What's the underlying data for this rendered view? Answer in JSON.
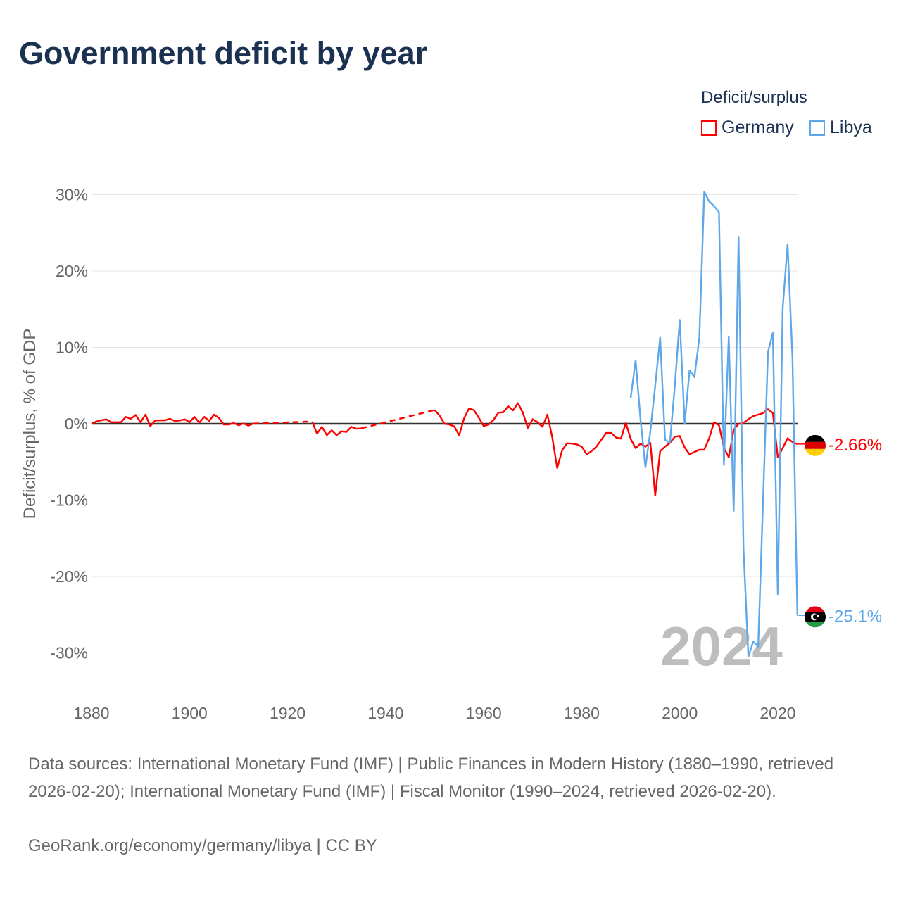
{
  "title": "Government deficit by year",
  "legend": {
    "title": "Deficit/surplus",
    "items": [
      {
        "label": "Germany",
        "color": "#ff0000"
      },
      {
        "label": "Libya",
        "color": "#5ea8ea"
      }
    ]
  },
  "year_watermark": "2024",
  "footer": {
    "sources": "Data sources: International Monetary Fund (IMF) | Public Finances in Modern History (1880–1990, retrieved 2026-02-20); International Monetary Fund (IMF) | Fiscal Monitor (1990–2024, retrieved 2026-02-20).",
    "credit": "GeoRank.org/economy/germany/libya | CC BY"
  },
  "chart_data": {
    "type": "line",
    "title": "Government deficit by year",
    "xlabel": "",
    "ylabel": "Deficit/surplus, % of GDP",
    "xlim": [
      1880,
      2024
    ],
    "ylim": [
      -35,
      31
    ],
    "x_ticks": [
      {
        "v": 1880,
        "label": "1880"
      },
      {
        "v": 1900,
        "label": "1900"
      },
      {
        "v": 1920,
        "label": "1920"
      },
      {
        "v": 1940,
        "label": "1940"
      },
      {
        "v": 1960,
        "label": "1960"
      },
      {
        "v": 1980,
        "label": "1980"
      },
      {
        "v": 2000,
        "label": "2000"
      },
      {
        "v": 2020,
        "label": "2020"
      }
    ],
    "y_ticks": [
      {
        "v": 30,
        "label": "30%"
      },
      {
        "v": 20,
        "label": "20%"
      },
      {
        "v": 10,
        "label": "10%"
      },
      {
        "v": 0,
        "label": "0%"
      },
      {
        "v": -10,
        "label": "-10%"
      },
      {
        "v": -20,
        "label": "-20%"
      },
      {
        "v": -30,
        "label": "-30%"
      }
    ],
    "grid": true,
    "legend_position": "top-right",
    "series": [
      {
        "name": "Germany",
        "color": "#ff0000",
        "end_label": "-2.66%",
        "flag": "germany",
        "points": [
          [
            1880,
            0
          ],
          [
            1881,
            0.3
          ],
          [
            1882,
            0.46
          ],
          [
            1883,
            0.58
          ],
          [
            1884,
            0.2
          ],
          [
            1885,
            0.2
          ],
          [
            1886,
            0.2
          ],
          [
            1887,
            0.9
          ],
          [
            1888,
            0.65
          ],
          [
            1889,
            1.15
          ],
          [
            1890,
            0.2
          ],
          [
            1891,
            1.2
          ],
          [
            1892,
            -0.3
          ],
          [
            1893,
            0.43
          ],
          [
            1894,
            0.45
          ],
          [
            1895,
            0.46
          ],
          [
            1896,
            0.65
          ],
          [
            1897,
            0.37
          ],
          [
            1898,
            0.43
          ],
          [
            1899,
            0.58
          ],
          [
            1900,
            0.2
          ],
          [
            1901,
            0.9
          ],
          [
            1902,
            0.15
          ],
          [
            1903,
            0.9
          ],
          [
            1904,
            0.37
          ],
          [
            1905,
            1.2
          ],
          [
            1906,
            0.74
          ],
          [
            1907,
            -0.1
          ],
          [
            1908,
            -0.1
          ],
          [
            1909,
            0.1
          ],
          [
            1910,
            -0.2
          ],
          [
            1911,
            0.05
          ],
          [
            1912,
            -0.25
          ],
          [
            1913,
            0.03
          ],
          [
            1925,
            0.3
          ],
          [
            1926,
            -1.3
          ],
          [
            1927,
            -0.4
          ],
          [
            1928,
            -1.5
          ],
          [
            1929,
            -0.86
          ],
          [
            1930,
            -1.5
          ],
          [
            1931,
            -1.0
          ],
          [
            1932,
            -1.07
          ],
          [
            1933,
            -0.4
          ],
          [
            1934,
            -0.65
          ],
          [
            1935,
            -0.6
          ],
          [
            1950,
            1.8
          ],
          [
            1951,
            1.07
          ],
          [
            1952,
            0
          ],
          [
            1953,
            -0.1
          ],
          [
            1954,
            -0.35
          ],
          [
            1955,
            -1.5
          ],
          [
            1956,
            0.7
          ],
          [
            1957,
            2.0
          ],
          [
            1958,
            1.8
          ],
          [
            1959,
            0.8
          ],
          [
            1960,
            -0.3
          ],
          [
            1961,
            -0.1
          ],
          [
            1962,
            0.5
          ],
          [
            1963,
            1.45
          ],
          [
            1964,
            1.5
          ],
          [
            1965,
            2.3
          ],
          [
            1966,
            1.75
          ],
          [
            1967,
            2.7
          ],
          [
            1968,
            1.45
          ],
          [
            1969,
            -0.55
          ],
          [
            1970,
            0.6
          ],
          [
            1971,
            0.2
          ],
          [
            1972,
            -0.4
          ],
          [
            1973,
            1.2
          ],
          [
            1974,
            -1.8
          ],
          [
            1975,
            -5.8
          ],
          [
            1976,
            -3.5
          ],
          [
            1977,
            -2.55
          ],
          [
            1978,
            -2.6
          ],
          [
            1979,
            -2.7
          ],
          [
            1980,
            -3.0
          ],
          [
            1981,
            -4.0
          ],
          [
            1982,
            -3.6
          ],
          [
            1983,
            -3.0
          ],
          [
            1984,
            -2.1
          ],
          [
            1985,
            -1.2
          ],
          [
            1986,
            -1.2
          ],
          [
            1987,
            -1.8
          ],
          [
            1988,
            -1.95
          ],
          [
            1989,
            0.1
          ],
          [
            1990,
            -2.0
          ],
          [
            1991,
            -3.2
          ],
          [
            1992,
            -2.6
          ],
          [
            1993,
            -3.0
          ],
          [
            1994,
            -2.5
          ],
          [
            1995,
            -9.4
          ],
          [
            1996,
            -3.6
          ],
          [
            1997,
            -3.0
          ],
          [
            1998,
            -2.5
          ],
          [
            1999,
            -1.7
          ],
          [
            2000,
            -1.6
          ],
          [
            2001,
            -3.1
          ],
          [
            2002,
            -4.0
          ],
          [
            2003,
            -3.7
          ],
          [
            2004,
            -3.4
          ],
          [
            2005,
            -3.4
          ],
          [
            2006,
            -1.9
          ],
          [
            2007,
            0.2
          ],
          [
            2008,
            -0.2
          ],
          [
            2009,
            -3.1
          ],
          [
            2010,
            -4.4
          ],
          [
            2011,
            -0.8
          ],
          [
            2012,
            0
          ],
          [
            2013,
            0.1
          ],
          [
            2014,
            0.6
          ],
          [
            2015,
            1.0
          ],
          [
            2016,
            1.2
          ],
          [
            2017,
            1.4
          ],
          [
            2018,
            1.9
          ],
          [
            2019,
            1.4
          ],
          [
            2020,
            -4.4
          ],
          [
            2021,
            -3.2
          ],
          [
            2022,
            -1.9
          ],
          [
            2023,
            -2.4
          ],
          [
            2024,
            -2.66
          ]
        ]
      },
      {
        "name": "Libya",
        "color": "#5ea8ea",
        "end_label": "-25.1%",
        "flag": "libya",
        "points": [
          [
            1990,
            3.4
          ],
          [
            1991,
            8.3
          ],
          [
            1992,
            0.5
          ],
          [
            1993,
            -5.7
          ],
          [
            1994,
            -1.0
          ],
          [
            1995,
            5.0
          ],
          [
            1996,
            11.3
          ],
          [
            1997,
            -2.1
          ],
          [
            1998,
            -2.5
          ],
          [
            1999,
            5.0
          ],
          [
            2000,
            13.6
          ],
          [
            2001,
            0
          ],
          [
            2002,
            7.0
          ],
          [
            2003,
            6.1
          ],
          [
            2004,
            11.3
          ],
          [
            2005,
            30.4
          ],
          [
            2006,
            29.1
          ],
          [
            2007,
            28.5
          ],
          [
            2008,
            27.7
          ],
          [
            2009,
            -5.4
          ],
          [
            2010,
            11.4
          ],
          [
            2011,
            -11.4
          ],
          [
            2012,
            24.5
          ],
          [
            2013,
            -16.3
          ],
          [
            2014,
            -30.5
          ],
          [
            2015,
            -28.5
          ],
          [
            2016,
            -29.2
          ],
          [
            2017,
            -10.0
          ],
          [
            2018,
            9.4
          ],
          [
            2019,
            11.9
          ],
          [
            2020,
            -22.3
          ],
          [
            2021,
            15.1
          ],
          [
            2022,
            23.5
          ],
          [
            2023,
            8.5
          ],
          [
            2024,
            -25.1
          ]
        ]
      }
    ]
  }
}
